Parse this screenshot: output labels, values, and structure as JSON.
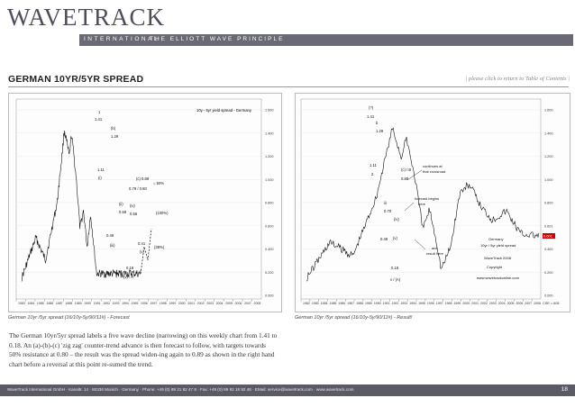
{
  "header": {
    "logo_text": "WAVETRACK",
    "logo_sub": "INTERNATIONAL",
    "tagline": "THE ELLIOTT WAVE PRINCIPLE"
  },
  "page": {
    "title": "GERMAN 10YR/5YR SPREAD",
    "toc_link": "| please click to return to Table of Contents |"
  },
  "charts": {
    "left": {
      "caption": "German 10yr /5yr spread (16/10y-5y/90/11#) - Forecast",
      "legend": "10y - 5yr yield spread - Germany",
      "x_ticks": [
        "1983",
        "1984",
        "1985",
        "1986",
        "1987",
        "1988",
        "1989",
        "1990",
        "1991",
        "1992",
        "1993",
        "1994",
        "1995",
        "1996",
        "1997",
        "1998",
        "1999",
        "2000",
        "2001",
        "2002",
        "2003",
        "2004",
        "2005",
        "2006",
        "2007",
        "2008"
      ],
      "y_ticks": [
        "1.600",
        "1.400",
        "1.200",
        "1.000",
        "0.800",
        "0.600",
        "0.400",
        "0.200",
        "0.000"
      ],
      "labels": {
        "w1": "1",
        "w1v": "1.41",
        "wb": "(b)",
        "w129": "1.29",
        "w111": "1.11",
        "w2": "(i)",
        "wa": "(a)",
        "w070": "0.70",
        "wc": "(c)",
        "w089": "0.89",
        "w079": "0.79 / 0.80",
        "w50": "= 50%",
        "wii": "(ii)",
        "w058": "0.58",
        "wiv": "(iv)",
        "w056": "0.56",
        "w100": "(100%)",
        "w049": "0.49",
        "wiii": "(iii)",
        "w041": "0.41",
        "wv": "(v)",
        "w018": "0.18",
        "wA": "(v) / A",
        "w38": "(38%)"
      }
    },
    "right": {
      "caption": "German 10yr /5yr spread (16/10y-5y/90/11#) - Result!",
      "x_ticks": [
        "1982",
        "1983",
        "1984",
        "1985",
        "1986",
        "1987",
        "1988",
        "1989",
        "1990",
        "1991",
        "1992",
        "1993",
        "1994",
        "1995",
        "1996",
        "1997",
        "1998",
        "1999",
        "2000",
        "2001",
        "2002",
        "2003",
        "2004",
        "2005",
        "2006",
        "2007",
        "2008"
      ],
      "y_ticks": [
        "1.600",
        "1.400",
        "1.200",
        "1.000",
        "0.800",
        "0.601",
        "0.400",
        "0.200",
        "0.000"
      ],
      "last_value": "0.601",
      "corner_label": "CSE = 608",
      "labels": {
        "w1": "(?)",
        "w1v": "1.41",
        "wb": "b",
        "w129": "1.29",
        "w111": "1.11",
        "w2": "2",
        "wc": "(c) / B",
        "w089": "0.89",
        "wiii": "iii",
        "w070": "0.70",
        "wiv": "(iv)",
        "w049": "0.49",
        "wv": "(v)",
        "w018": "0.18",
        "wA": "v / (A)",
        "ann1": "continues at",
        "ann1b": "that crossroad",
        "ann2": "forecast begins",
        "ann2b": "here",
        "ann3": "and",
        "ann3b": "result here",
        "box1": "Germany",
        "box2": "10yr / 5yr yield spread",
        "box3": "WaveTrack 2008",
        "box4": "Copyright",
        "box5": "www.wavetrackonline.com"
      }
    }
  },
  "body_text": "The German 10yr/5yr spread labels a five wave decline (narrowing) on this weekly chart from 1.41 to 0.18. An (a)-(b)-(c) 'zig zag' counter-trend advance is then forecast to follow, with targets towards 50% resistance at 0.80 – the result was the spread widen-ing again to 0.89 as shown in the right hand chart before a reversal at this point re-sumed the trend.",
  "footer": {
    "text": "WaveTrack International GmbH  ·  Kanaltr. 14  ·  80336 Munich  ·  Germany  ·  Phone: +49 (0) 89 21 82 47 8  ·  Fax: +49 (0) 89 92 18 92 48  ·  EMail: service@wavetrack.com  ·  www.wavetrack.com",
    "page_number": "18"
  },
  "colors": {
    "header_bar": "#6a6a76",
    "footer_bar": "#5b5b66",
    "price_line": "#111111",
    "highlight_line": "#d00000"
  }
}
